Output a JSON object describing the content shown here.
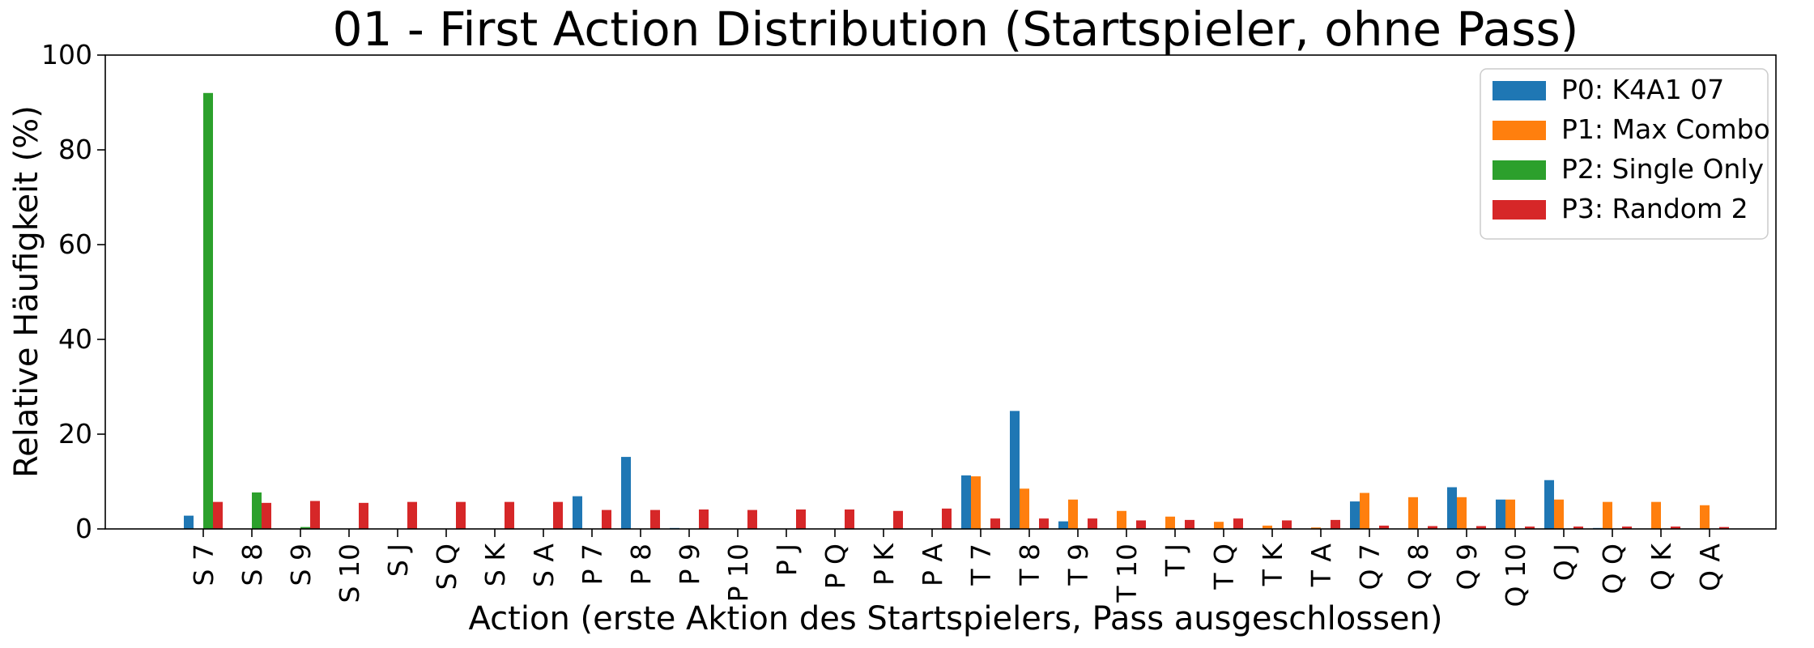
{
  "chart_data": {
    "type": "bar",
    "title": "01 - First Action Distribution (Startspieler, ohne Pass)",
    "xlabel": "Action (erste Aktion des Startspielers, Pass ausgeschlossen)",
    "ylabel": "Relative Häufigkeit (%)",
    "ylim": [
      0,
      100
    ],
    "yticks": [
      "0",
      "20",
      "40",
      "60",
      "80",
      "100"
    ],
    "grid": false,
    "legend_position": "top-right",
    "categories": [
      "S 7",
      "S 8",
      "S 9",
      "S 10",
      "S J",
      "S Q",
      "S K",
      "S A",
      "P 7",
      "P 8",
      "P 9",
      "P 10",
      "P J",
      "P Q",
      "P K",
      "P A",
      "T 7",
      "T 8",
      "T 9",
      "T 10",
      "T J",
      "T Q",
      "T K",
      "T A",
      "Q 7",
      "Q 8",
      "Q 9",
      "Q 10",
      "Q J",
      "Q Q",
      "Q K",
      "Q A"
    ],
    "series": [
      {
        "name": "P0: K4A1 07",
        "color": "#1f77b4",
        "values": [
          2.8,
          0,
          0,
          0,
          0,
          0,
          0,
          0,
          6.9,
          15.2,
          0.2,
          0,
          0,
          0,
          0,
          0,
          11.3,
          24.9,
          1.6,
          0,
          0,
          0,
          0,
          0,
          5.8,
          0,
          8.8,
          6.2,
          10.3,
          0.2,
          0,
          0
        ]
      },
      {
        "name": "P1: Max Combo",
        "color": "#ff7f0e",
        "values": [
          0,
          0,
          0,
          0,
          0,
          0,
          0,
          0,
          0,
          0,
          0,
          0,
          0,
          0,
          0,
          0,
          11.1,
          8.5,
          6.2,
          3.8,
          2.6,
          1.5,
          0.7,
          0.3,
          7.6,
          6.7,
          6.7,
          6.2,
          6.2,
          5.7,
          5.7,
          5.0
        ]
      },
      {
        "name": "P2: Single Only",
        "color": "#2ca02c",
        "values": [
          92.0,
          7.7,
          0.4,
          0,
          0,
          0,
          0,
          0,
          0,
          0,
          0,
          0,
          0,
          0,
          0,
          0,
          0,
          0,
          0,
          0,
          0,
          0,
          0,
          0,
          0,
          0,
          0,
          0,
          0,
          0,
          0,
          0
        ]
      },
      {
        "name": "P3: Random 2",
        "color": "#d62728",
        "values": [
          5.7,
          5.5,
          5.9,
          5.5,
          5.7,
          5.7,
          5.7,
          5.7,
          4.0,
          4.0,
          4.1,
          4.0,
          4.1,
          4.1,
          3.8,
          4.3,
          2.2,
          2.2,
          2.2,
          1.8,
          1.9,
          2.2,
          1.8,
          1.9,
          0.7,
          0.6,
          0.6,
          0.5,
          0.5,
          0.5,
          0.5,
          0.4
        ]
      }
    ]
  }
}
